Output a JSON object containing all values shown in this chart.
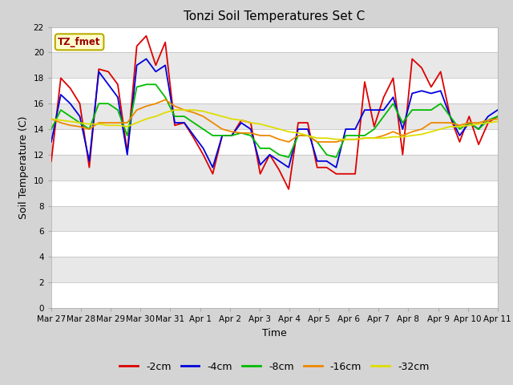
{
  "title": "Tonzi Soil Temperatures Set C",
  "xlabel": "Time",
  "ylabel": "Soil Temperature (C)",
  "ylim": [
    0,
    22
  ],
  "yticks": [
    0,
    2,
    4,
    6,
    8,
    10,
    12,
    14,
    16,
    18,
    20,
    22
  ],
  "fig_bg_color": "#d4d4d4",
  "plot_bg_color": "#d4d4d4",
  "legend_labels": [
    "-2cm",
    "-4cm",
    "-8cm",
    "-16cm",
    "-32cm"
  ],
  "legend_colors": [
    "#dd0000",
    "#0000dd",
    "#00bb00",
    "#ee8800",
    "#dddd00"
  ],
  "watermark_text": "TZ_fmet",
  "watermark_bg": "#ffffcc",
  "watermark_border": "#bbaa00",
  "n_days": 16,
  "x_tick_labels": [
    "Mar 27",
    "Mar 28",
    "Mar 29",
    "Mar 30",
    "Mar 31",
    "Apr 1",
    "Apr 2",
    "Apr 3",
    "Apr 4",
    "Apr 5",
    "Apr 6",
    "Apr 7",
    "Apr 8",
    "Apr 9",
    "Apr 10",
    "Apr 11"
  ],
  "series": {
    "d2cm": [
      11.5,
      18.0,
      17.2,
      16.0,
      11.0,
      18.7,
      18.5,
      17.5,
      12.2,
      20.5,
      21.3,
      19.0,
      20.8,
      14.3,
      14.5,
      13.3,
      12.0,
      10.5,
      13.5,
      13.5,
      14.7,
      14.5,
      10.5,
      12.0,
      10.8,
      9.3,
      14.5,
      14.5,
      11.0,
      11.0,
      10.5,
      10.5,
      10.5,
      17.7,
      14.2,
      16.5,
      18.0,
      12.0,
      19.5,
      18.8,
      17.3,
      18.5,
      15.0,
      13.0,
      15.0,
      12.8,
      14.5,
      15.0
    ],
    "d4cm": [
      13.0,
      16.7,
      16.0,
      15.0,
      11.5,
      18.5,
      17.5,
      16.5,
      12.0,
      19.0,
      19.5,
      18.5,
      19.0,
      14.5,
      14.5,
      13.5,
      12.5,
      11.0,
      13.5,
      13.5,
      14.5,
      14.0,
      11.2,
      12.0,
      11.5,
      11.0,
      14.0,
      14.0,
      11.5,
      11.5,
      11.0,
      14.0,
      14.0,
      15.5,
      15.5,
      15.5,
      16.5,
      14.0,
      16.8,
      17.0,
      16.8,
      17.0,
      15.0,
      13.5,
      14.5,
      14.0,
      15.0,
      15.5
    ],
    "d8cm": [
      14.0,
      15.5,
      15.0,
      14.5,
      14.0,
      16.0,
      16.0,
      15.5,
      13.5,
      17.3,
      17.5,
      17.5,
      16.5,
      15.0,
      15.0,
      14.5,
      14.0,
      13.5,
      13.5,
      13.5,
      13.7,
      13.5,
      12.5,
      12.5,
      12.0,
      11.8,
      13.5,
      13.5,
      13.0,
      12.0,
      11.8,
      13.5,
      13.5,
      13.5,
      14.0,
      15.0,
      16.0,
      14.5,
      15.5,
      15.5,
      15.5,
      16.0,
      15.0,
      14.0,
      14.5,
      14.0,
      14.7,
      15.0
    ],
    "d16cm": [
      14.8,
      14.5,
      14.3,
      14.2,
      14.0,
      14.5,
      14.5,
      14.5,
      14.5,
      15.5,
      15.8,
      16.0,
      16.3,
      15.8,
      15.5,
      15.3,
      15.0,
      14.5,
      14.0,
      13.8,
      13.7,
      13.7,
      13.5,
      13.5,
      13.2,
      13.0,
      13.5,
      13.5,
      13.0,
      13.0,
      13.0,
      13.2,
      13.2,
      13.3,
      13.3,
      13.5,
      13.8,
      13.5,
      13.8,
      14.0,
      14.5,
      14.5,
      14.5,
      14.3,
      14.5,
      14.5,
      14.7,
      14.8
    ],
    "d32cm": [
      14.8,
      14.7,
      14.6,
      14.5,
      14.4,
      14.4,
      14.3,
      14.3,
      14.2,
      14.5,
      14.8,
      15.0,
      15.3,
      15.5,
      15.5,
      15.5,
      15.4,
      15.2,
      15.0,
      14.8,
      14.7,
      14.5,
      14.4,
      14.2,
      14.0,
      13.8,
      13.7,
      13.5,
      13.3,
      13.3,
      13.2,
      13.2,
      13.2,
      13.3,
      13.3,
      13.3,
      13.4,
      13.4,
      13.5,
      13.6,
      13.8,
      14.0,
      14.2,
      14.2,
      14.3,
      14.4,
      14.5,
      14.6
    ]
  }
}
